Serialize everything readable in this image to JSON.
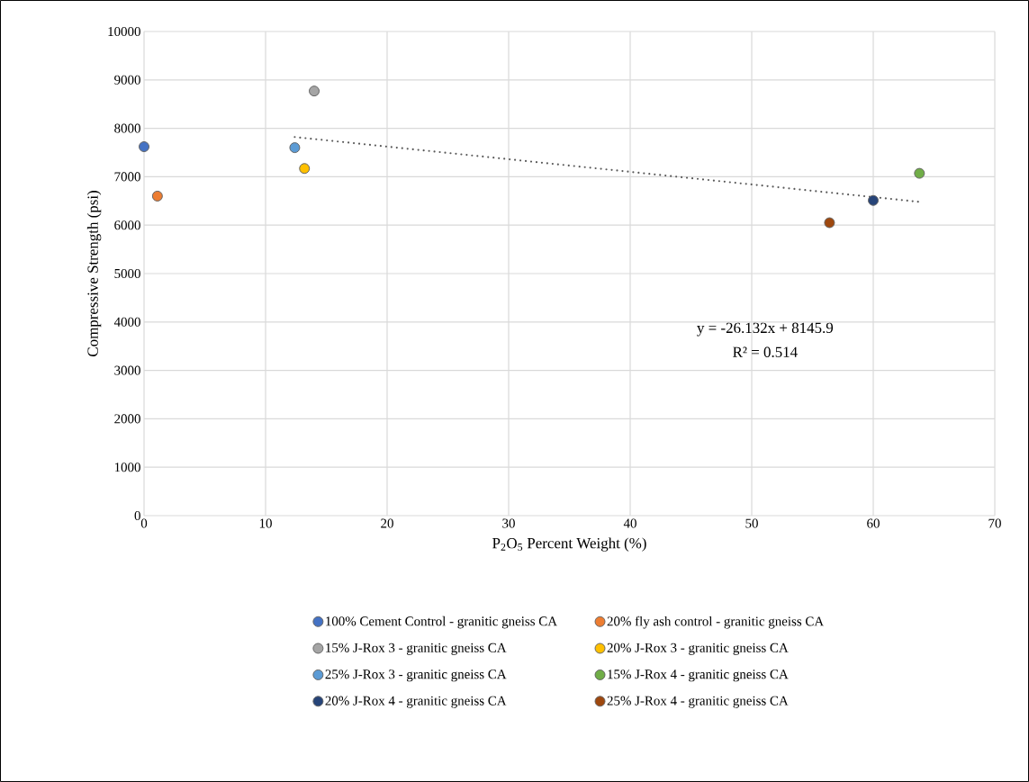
{
  "chart_data": {
    "type": "scatter",
    "xlabel": "P$_{2}$O$_{5}$ Percent Weight (%)",
    "ylabel": "Compressive Strength (psi)",
    "xlim": [
      0,
      70
    ],
    "xticks": [
      0,
      10,
      20,
      30,
      40,
      50,
      60,
      70
    ],
    "ylim": [
      0,
      10000
    ],
    "yticks": [
      0,
      1000,
      2000,
      3000,
      4000,
      5000,
      6000,
      7000,
      8000,
      9000,
      10000
    ],
    "grid": true,
    "legend": "bottom",
    "marker": "circle",
    "annotations": [
      "y = -26.132x + 8145.9",
      "R² = 0.514"
    ],
    "series": [
      {
        "name": "100% Cement Control - granitic gneiss CA",
        "color": "#4472c4",
        "x": [
          0
        ],
        "values": [
          7620
        ]
      },
      {
        "name": "20% fly ash control - granitic gneiss CA",
        "color": "#ed7d31",
        "x": [
          1.1
        ],
        "values": [
          6600
        ]
      },
      {
        "name": "15% J-Rox 3 - granitic gneiss CA",
        "color": "#a5a5a5",
        "x": [
          14.0
        ],
        "values": [
          8770
        ]
      },
      {
        "name": "20% J-Rox 3 - granitic gneiss CA",
        "color": "#ffc000",
        "x": [
          13.2
        ],
        "values": [
          7170
        ]
      },
      {
        "name": "25% J-Rox 3 - granitic gneiss CA",
        "color": "#5b9bd5",
        "x": [
          12.4
        ],
        "values": [
          7600
        ]
      },
      {
        "name": "15% J-Rox 4 - granitic gneiss CA",
        "color": "#70ad47",
        "x": [
          63.8
        ],
        "values": [
          7070
        ]
      },
      {
        "name": "20% J-Rox 4 - granitic gneiss CA",
        "color": "#264478",
        "x": [
          60.0
        ],
        "values": [
          6510
        ]
      },
      {
        "name": "25% J-Rox 4 - granitic gneiss CA",
        "color": "#9e480e",
        "x": [
          56.4
        ],
        "values": [
          6050
        ]
      },
      {
        "type": "line",
        "color": "#595959",
        "line_style": "dotted",
        "marker": "none",
        "x": [
          12.4,
          63.8
        ],
        "values": [
          7820,
          6480
        ]
      }
    ]
  }
}
